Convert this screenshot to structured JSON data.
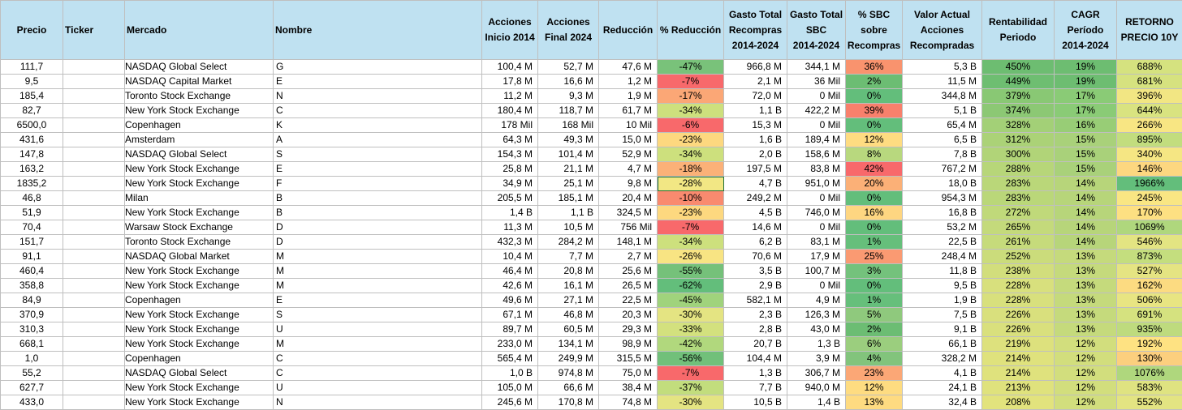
{
  "headers": [
    "Precio",
    "Ticker",
    "Mercado",
    "Nombre",
    "Acciones Inicio 2014",
    "Acciones Final 2024",
    "Reducción",
    "% Reducción",
    "Gasto Total Recompras 2014-2024",
    "Gasto Total SBC 2014-2024",
    "% SBC sobre Recompras",
    "Valor Actual Acciones Recompradas",
    "Rentabilidad Periodo",
    "CAGR Período 2014-2024",
    "RETORNO PRECIO 10Y"
  ],
  "headers_display": [
    [
      "Precio"
    ],
    [
      "Ticker"
    ],
    [
      "Mercado"
    ],
    [
      "Nombre"
    ],
    [
      "Acciones",
      "Inicio 2014"
    ],
    [
      "Acciones",
      "Final 2024"
    ],
    [
      "Reducción"
    ],
    [
      "% Reducción"
    ],
    [
      "Gasto Total",
      "Recompras",
      "2014-2024"
    ],
    [
      "Gasto Total",
      "SBC",
      "2014-2024"
    ],
    [
      "% SBC",
      "sobre",
      "Recompras"
    ],
    [
      "Valor Actual",
      "Acciones",
      "Recompradas"
    ],
    [
      "Rentabilidad",
      "Periodo"
    ],
    [
      "CAGR",
      "Período",
      "2014-2024"
    ],
    [
      "RETORNO",
      "PRECIO 10Y"
    ]
  ],
  "rows": [
    {
      "precio": "111,7",
      "ticker": "",
      "mercado": "NASDAQ Global Select",
      "nombre": "G",
      "inicio": "100,4 M",
      "final": "52,7 M",
      "reduccion": "47,6 M",
      "pct_red": "-47%",
      "gasto_rec": "966,8 M",
      "gasto_sbc": "344,1 M",
      "pct_sbc": "36%",
      "valor": "5,3 B",
      "rent": "450%",
      "cagr": "19%",
      "ret": "688%",
      "c_red": "#79c27a",
      "c_sbc": "#f9936e",
      "c_rent": "#6dbd71",
      "c_cagr": "#6dbd71",
      "c_ret": "#d5e27f"
    },
    {
      "precio": "9,5",
      "ticker": "",
      "mercado": "NASDAQ Capital Market",
      "nombre": "E",
      "inicio": "17,8 M",
      "final": "16,6 M",
      "reduccion": "1,2 M",
      "pct_red": "-7%",
      "gasto_rec": "2,1 M",
      "gasto_sbc": "36 Mil",
      "pct_sbc": "2%",
      "valor": "11,5 M",
      "rent": "449%",
      "cagr": "19%",
      "ret": "681%",
      "c_red": "#f8696b",
      "c_sbc": "#6cbd73",
      "c_rent": "#6ebe71",
      "c_cagr": "#6dbd71",
      "c_ret": "#d6e27f"
    },
    {
      "precio": "185,4",
      "ticker": "",
      "mercado": "Toronto Stock Exchange",
      "nombre": "N",
      "inicio": "11,2 M",
      "final": "9,3 M",
      "reduccion": "1,9 M",
      "pct_red": "-17%",
      "gasto_rec": "72,0 M",
      "gasto_sbc": "0 Mil",
      "pct_sbc": "0%",
      "valor": "344,8 M",
      "rent": "379%",
      "cagr": "17%",
      "ret": "396%",
      "c_red": "#fba776",
      "c_sbc": "#63be7b",
      "c_rent": "#89c874",
      "c_cagr": "#8acb76",
      "c_ret": "#f2e683"
    },
    {
      "precio": "82,7",
      "ticker": "",
      "mercado": "New York Stock Exchange",
      "nombre": "C",
      "inicio": "180,4 M",
      "final": "118,7 M",
      "reduccion": "61,7 M",
      "pct_red": "-34%",
      "gasto_rec": "1,1 B",
      "gasto_sbc": "422,2 M",
      "pct_sbc": "39%",
      "valor": "5,1 B",
      "rent": "374%",
      "cagr": "17%",
      "ret": "644%",
      "c_red": "#cde07d",
      "c_sbc": "#f8806c",
      "c_rent": "#8cc874",
      "c_cagr": "#8acb76",
      "c_ret": "#d9e380"
    },
    {
      "precio": "6500,0",
      "ticker": "",
      "mercado": "Copenhagen",
      "nombre": "K",
      "inicio": "178 Mil",
      "final": "168 Mil",
      "reduccion": "10 Mil",
      "pct_red": "-6%",
      "gasto_rec": "15,3 M",
      "gasto_sbc": "0 Mil",
      "pct_sbc": "0%",
      "valor": "65,4 M",
      "rent": "328%",
      "cagr": "16%",
      "ret": "266%",
      "c_red": "#f8696b",
      "c_sbc": "#63be7b",
      "c_rent": "#a3d077",
      "c_cagr": "#98cd76",
      "c_ret": "#f8e683"
    },
    {
      "precio": "431,6",
      "ticker": "",
      "mercado": "Amsterdam",
      "nombre": "A",
      "inicio": "64,3 M",
      "final": "49,3 M",
      "reduccion": "15,0 M",
      "pct_red": "-23%",
      "gasto_rec": "1,6 B",
      "gasto_sbc": "189,4 M",
      "pct_sbc": "12%",
      "valor": "6,5 B",
      "rent": "312%",
      "cagr": "15%",
      "ret": "895%",
      "c_red": "#fdd87f",
      "c_sbc": "#fedc81",
      "c_rent": "#abd277",
      "c_cagr": "#a9d17a",
      "c_ret": "#c2dd7e"
    },
    {
      "precio": "147,8",
      "ticker": "",
      "mercado": "NASDAQ Global Select",
      "nombre": "S",
      "inicio": "154,3 M",
      "final": "101,4 M",
      "reduccion": "52,9 M",
      "pct_red": "-34%",
      "gasto_rec": "2,0 B",
      "gasto_sbc": "158,6 M",
      "pct_sbc": "8%",
      "valor": "7,8 B",
      "rent": "300%",
      "cagr": "15%",
      "ret": "340%",
      "c_red": "#cde07d",
      "c_sbc": "#b8d87e",
      "c_rent": "#b1d478",
      "c_cagr": "#a9d17a",
      "c_ret": "#f5e683"
    },
    {
      "precio": "163,2",
      "ticker": "",
      "mercado": "New York Stock Exchange",
      "nombre": "E",
      "inicio": "25,8 M",
      "final": "21,1 M",
      "reduccion": "4,7 M",
      "pct_red": "-18%",
      "gasto_rec": "197,5 M",
      "gasto_sbc": "83,8 M",
      "pct_sbc": "42%",
      "valor": "767,2 M",
      "rent": "288%",
      "cagr": "15%",
      "ret": "146%",
      "c_red": "#fbb178",
      "c_sbc": "#f8696b",
      "c_rent": "#b7d679",
      "c_cagr": "#a9d17a",
      "c_ret": "#fdd780"
    },
    {
      "precio": "1835,2",
      "ticker": "",
      "mercado": "New York Stock Exchange",
      "nombre": "F",
      "inicio": "34,9 M",
      "final": "25,1 M",
      "reduccion": "9,8 M",
      "pct_red": "-28%",
      "gasto_rec": "4,7 B",
      "gasto_sbc": "951,0 M",
      "pct_sbc": "20%",
      "valor": "18,0 B",
      "rent": "283%",
      "cagr": "14%",
      "ret": "1966%",
      "c_red": "#f2e784",
      "c_sbc": "#fbb077",
      "c_rent": "#bad779",
      "c_cagr": "#b7d57a",
      "c_ret": "#63be7b"
    },
    {
      "precio": "46,8",
      "ticker": "",
      "mercado": "Milan",
      "nombre": "B",
      "inicio": "205,5 M",
      "final": "185,1 M",
      "reduccion": "20,4 M",
      "pct_red": "-10%",
      "gasto_rec": "249,2 M",
      "gasto_sbc": "0 Mil",
      "pct_sbc": "0%",
      "valor": "954,3 M",
      "rent": "283%",
      "cagr": "14%",
      "ret": "245%",
      "c_red": "#f98a6f",
      "c_sbc": "#63be7b",
      "c_rent": "#bad779",
      "c_cagr": "#b7d57a",
      "c_ret": "#f9e683"
    },
    {
      "precio": "51,9",
      "ticker": "",
      "mercado": "New York Stock Exchange",
      "nombre": "B",
      "inicio": "1,4 B",
      "final": "1,1 B",
      "reduccion": "324,5 M",
      "pct_red": "-23%",
      "gasto_rec": "4,5 B",
      "gasto_sbc": "746,0 M",
      "pct_sbc": "16%",
      "valor": "16,8 B",
      "rent": "272%",
      "cagr": "14%",
      "ret": "170%",
      "c_red": "#fdd87f",
      "c_sbc": "#fed681",
      "c_rent": "#c0d97a",
      "c_cagr": "#b7d57a",
      "c_ret": "#fde082"
    },
    {
      "precio": "70,4",
      "ticker": "",
      "mercado": "Warsaw Stock Exchange",
      "nombre": "D",
      "inicio": "11,3 M",
      "final": "10,5 M",
      "reduccion": "756 Mil",
      "pct_red": "-7%",
      "gasto_rec": "14,6 M",
      "gasto_sbc": "0 Mil",
      "pct_sbc": "0%",
      "valor": "53,2 M",
      "rent": "265%",
      "cagr": "14%",
      "ret": "1069%",
      "c_red": "#f8696b",
      "c_sbc": "#63be7b",
      "c_rent": "#c4da7b",
      "c_cagr": "#b7d57a",
      "c_ret": "#afd77d"
    },
    {
      "precio": "151,7",
      "ticker": "",
      "mercado": "Toronto Stock Exchange",
      "nombre": "D",
      "inicio": "432,3 M",
      "final": "284,2 M",
      "reduccion": "148,1 M",
      "pct_red": "-34%",
      "gasto_rec": "6,2 B",
      "gasto_sbc": "83,1 M",
      "pct_sbc": "1%",
      "valor": "22,5 B",
      "rent": "261%",
      "cagr": "14%",
      "ret": "546%",
      "c_red": "#cde07d",
      "c_sbc": "#66bf7b",
      "c_rent": "#c6db7b",
      "c_cagr": "#b7d57a",
      "c_ret": "#e3e482"
    },
    {
      "precio": "91,1",
      "ticker": "",
      "mercado": "NASDAQ Global Market",
      "nombre": "M",
      "inicio": "10,4 M",
      "final": "7,7 M",
      "reduccion": "2,7 M",
      "pct_red": "-26%",
      "gasto_rec": "70,6 M",
      "gasto_sbc": "17,9 M",
      "pct_sbc": "25%",
      "valor": "248,4 M",
      "rent": "252%",
      "cagr": "13%",
      "ret": "873%",
      "c_red": "#f8e483",
      "c_sbc": "#fa9a72",
      "c_rent": "#cbdc7b",
      "c_cagr": "#c5da7c",
      "c_ret": "#c4de7e"
    },
    {
      "precio": "460,4",
      "ticker": "",
      "mercado": "New York Stock Exchange",
      "nombre": "M",
      "inicio": "46,4 M",
      "final": "20,8 M",
      "reduccion": "25,6 M",
      "pct_red": "-55%",
      "gasto_rec": "3,5 B",
      "gasto_sbc": "100,7 M",
      "pct_sbc": "3%",
      "valor": "11,8 B",
      "rent": "238%",
      "cagr": "13%",
      "ret": "527%",
      "c_red": "#75c17a",
      "c_sbc": "#74c27c",
      "c_rent": "#d2de7c",
      "c_cagr": "#c5da7c",
      "c_ret": "#e5e482"
    },
    {
      "precio": "358,8",
      "ticker": "",
      "mercado": "New York Stock Exchange",
      "nombre": "M",
      "inicio": "42,6 M",
      "final": "16,1 M",
      "reduccion": "26,5 M",
      "pct_red": "-62%",
      "gasto_rec": "2,9 B",
      "gasto_sbc": "0 Mil",
      "pct_sbc": "0%",
      "valor": "9,5 B",
      "rent": "228%",
      "cagr": "13%",
      "ret": "162%",
      "c_red": "#63be7b",
      "c_sbc": "#63be7b",
      "c_rent": "#d8e07d",
      "c_cagr": "#c5da7c",
      "c_ret": "#fcdb81"
    },
    {
      "precio": "84,9",
      "ticker": "",
      "mercado": "Copenhagen",
      "nombre": "E",
      "inicio": "49,6 M",
      "final": "27,1 M",
      "reduccion": "22,5 M",
      "pct_red": "-45%",
      "gasto_rec": "582,1 M",
      "gasto_sbc": "4,9 M",
      "pct_sbc": "1%",
      "valor": "1,9 B",
      "rent": "228%",
      "cagr": "13%",
      "ret": "506%",
      "c_red": "#a0d37c",
      "c_sbc": "#66bf7b",
      "c_rent": "#d8e07d",
      "c_cagr": "#c5da7c",
      "c_ret": "#e8e582"
    },
    {
      "precio": "370,9",
      "ticker": "",
      "mercado": "New York Stock Exchange",
      "nombre": "S",
      "inicio": "67,1 M",
      "final": "46,8 M",
      "reduccion": "20,3 M",
      "pct_red": "-30%",
      "gasto_rec": "2,3 B",
      "gasto_sbc": "126,3 M",
      "pct_sbc": "5%",
      "valor": "7,5 B",
      "rent": "226%",
      "cagr": "13%",
      "ret": "691%",
      "c_red": "#e4e482",
      "c_sbc": "#8fc97d",
      "c_rent": "#d9e07d",
      "c_cagr": "#c5da7c",
      "c_ret": "#d5e27f"
    },
    {
      "precio": "310,3",
      "ticker": "",
      "mercado": "New York Stock Exchange",
      "nombre": "U",
      "inicio": "89,7 M",
      "final": "60,5 M",
      "reduccion": "29,3 M",
      "pct_red": "-33%",
      "gasto_rec": "2,8 B",
      "gasto_sbc": "43,0 M",
      "pct_sbc": "2%",
      "valor": "9,1 B",
      "rent": "226%",
      "cagr": "13%",
      "ret": "935%",
      "c_red": "#d3e17e",
      "c_sbc": "#6cbd73",
      "c_rent": "#d9e07d",
      "c_cagr": "#c5da7c",
      "c_ret": "#bedb7e"
    },
    {
      "precio": "668,1",
      "ticker": "",
      "mercado": "New York Stock Exchange",
      "nombre": "M",
      "inicio": "233,0 M",
      "final": "134,1 M",
      "reduccion": "98,9 M",
      "pct_red": "-42%",
      "gasto_rec": "20,7 B",
      "gasto_sbc": "1,3 B",
      "pct_sbc": "6%",
      "valor": "66,1 B",
      "rent": "219%",
      "cagr": "12%",
      "ret": "192%",
      "c_red": "#b1d87d",
      "c_sbc": "#9bce7e",
      "c_rent": "#ddE17d",
      "c_cagr": "#d2de7d",
      "c_ret": "#fee282"
    },
    {
      "precio": "1,0",
      "ticker": "",
      "mercado": "Copenhagen",
      "nombre": "C",
      "inicio": "565,4 M",
      "final": "249,9 M",
      "reduccion": "315,5 M",
      "pct_red": "-56%",
      "gasto_rec": "104,4 M",
      "gasto_sbc": "3,9 M",
      "pct_sbc": "4%",
      "valor": "328,2 M",
      "rent": "214%",
      "cagr": "12%",
      "ret": "130%",
      "c_red": "#71c07a",
      "c_sbc": "#82c47c",
      "c_rent": "#dfe27d",
      "c_cagr": "#d2de7d",
      "c_ret": "#fccf7e"
    },
    {
      "precio": "55,2",
      "ticker": "",
      "mercado": "NASDAQ Global Select",
      "nombre": "C",
      "inicio": "1,0 B",
      "final": "974,8 M",
      "reduccion": "75,0 M",
      "pct_red": "-7%",
      "gasto_rec": "1,3 B",
      "gasto_sbc": "306,7 M",
      "pct_sbc": "23%",
      "valor": "4,1 B",
      "rent": "214%",
      "cagr": "12%",
      "ret": "1076%",
      "c_red": "#f8696b",
      "c_sbc": "#fba776",
      "c_rent": "#dfe27d",
      "c_cagr": "#d2de7d",
      "c_ret": "#afd77d"
    },
    {
      "precio": "627,7",
      "ticker": "",
      "mercado": "New York Stock Exchange",
      "nombre": "U",
      "inicio": "105,0 M",
      "final": "66,6 M",
      "reduccion": "38,4 M",
      "pct_red": "-37%",
      "gasto_rec": "7,7 B",
      "gasto_sbc": "940,0 M",
      "pct_sbc": "12%",
      "valor": "24,1 B",
      "rent": "213%",
      "cagr": "12%",
      "ret": "583%",
      "c_red": "#c2dd7d",
      "c_sbc": "#fedc81",
      "c_rent": "#dfe27d",
      "c_cagr": "#d2de7d",
      "c_ret": "#dfe381"
    },
    {
      "precio": "433,0",
      "ticker": "",
      "mercado": "New York Stock Exchange",
      "nombre": "N",
      "inicio": "245,6 M",
      "final": "170,8 M",
      "reduccion": "74,8 M",
      "pct_red": "-30%",
      "gasto_rec": "10,5 B",
      "gasto_sbc": "1,4 B",
      "pct_sbc": "13%",
      "valor": "32,4 B",
      "rent": "208%",
      "cagr": "12%",
      "ret": "552%",
      "c_red": "#e4e482",
      "c_sbc": "#fedb81",
      "c_rent": "#e2e37d",
      "c_cagr": "#d2de7d",
      "c_ret": "#e3e482"
    }
  ]
}
